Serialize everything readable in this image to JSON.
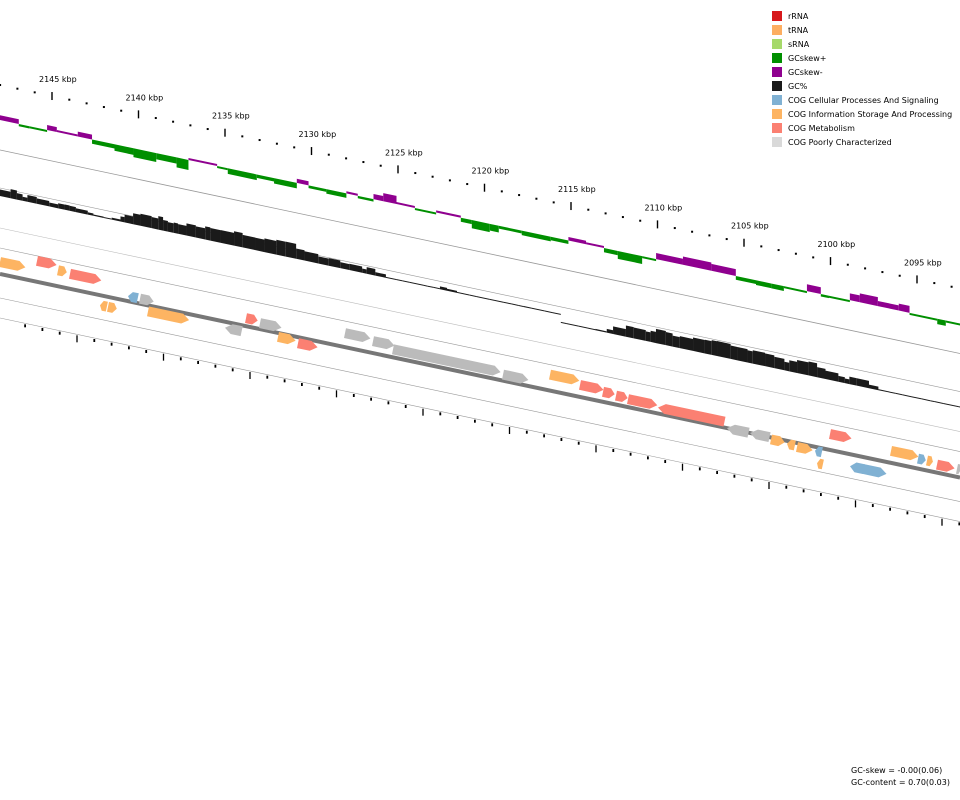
{
  "ticks": [
    {
      "value": 2145,
      "label": "2145 kbp"
    },
    {
      "value": 2140,
      "label": "2140 kbp"
    },
    {
      "value": 2135,
      "label": "2135 kbp"
    },
    {
      "value": 2130,
      "label": "2130 kbp"
    },
    {
      "value": 2125,
      "label": "2125 kbp"
    },
    {
      "value": 2120,
      "label": "2120 kbp"
    },
    {
      "value": 2115,
      "label": "2115 kbp"
    },
    {
      "value": 2110,
      "label": "2110 kbp"
    },
    {
      "value": 2105,
      "label": "2105 kbp"
    },
    {
      "value": 2100,
      "label": "2100 kbp"
    },
    {
      "value": 2095,
      "label": "2095 kbp"
    }
  ],
  "legend": [
    {
      "label": "rRNA",
      "color": "#d7191c"
    },
    {
      "label": "tRNA",
      "color": "#fdae61"
    },
    {
      "label": "sRNA",
      "color": "#a6d96a"
    },
    {
      "label": "GCskew+",
      "color": "#008f00"
    },
    {
      "label": "GCskew-",
      "color": "#8f008f"
    },
    {
      "label": "GC%",
      "color": "#1a1a1a"
    },
    {
      "label": "COG Cellular Processes And Signaling",
      "color": "#80b1d3"
    },
    {
      "label": "COG Information Storage And Processing",
      "color": "#fdb462"
    },
    {
      "label": "COG Metabolism",
      "color": "#fb8072"
    },
    {
      "label": "COG Poorly Characterized",
      "color": "#d9d9d9"
    }
  ],
  "stats": {
    "gc_skew": "GC-skew = -0.00(0.06)",
    "gc_content": "GC-content = 0.70(0.03)"
  }
}
